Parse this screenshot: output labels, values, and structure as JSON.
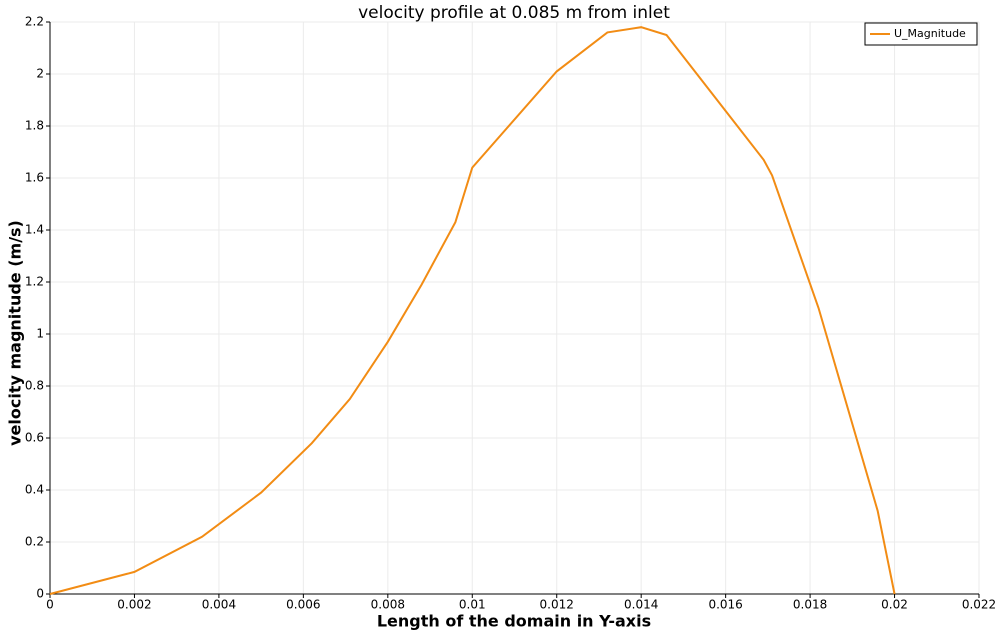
{
  "chart_data": {
    "type": "line",
    "title": "velocity profile at 0.085 m from inlet",
    "x_label": "Length of the domain in Y-axis",
    "y_label": "velocity magnitude (m/s)",
    "x": [
      0,
      0.002,
      0.0036,
      0.005,
      0.0062,
      0.0071,
      0.008,
      0.0088,
      0.0096,
      0.01,
      0.012,
      0.0132,
      0.014,
      0.0146,
      0.0169,
      0.0171,
      0.0182,
      0.0196,
      0.02
    ],
    "series": [
      {
        "name": "U_Magnitude",
        "color": "#f28c14",
        "values": [
          0,
          0.085,
          0.22,
          0.39,
          0.58,
          0.75,
          0.97,
          1.19,
          1.43,
          1.64,
          2.01,
          2.16,
          2.18,
          2.15,
          1.67,
          1.61,
          1.1,
          0.32,
          0
        ]
      }
    ],
    "xlim": [
      0,
      0.022
    ],
    "xticks": [
      0,
      0.002,
      0.004,
      0.006,
      0.008,
      0.01,
      0.012,
      0.014,
      0.016,
      0.018,
      0.02,
      0.022
    ],
    "ylim": [
      0,
      2.2
    ],
    "yticks": [
      0,
      0.2,
      0.4,
      0.6,
      0.8,
      1,
      1.2,
      1.4,
      1.6,
      1.8,
      2,
      2.2
    ],
    "grid": true,
    "legend": "upper right"
  }
}
